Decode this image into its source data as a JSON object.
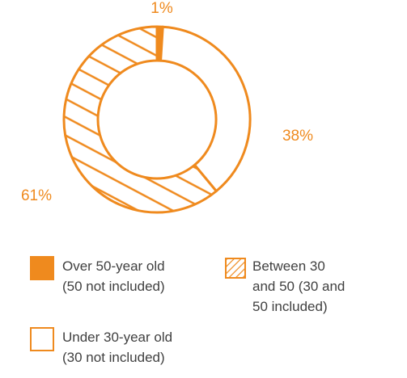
{
  "colors": {
    "accent": "#ef8a1e",
    "text": "#404040",
    "label": "#ef8a1e"
  },
  "chart_data": {
    "type": "pie",
    "style": "donut",
    "slices": [
      {
        "label": "Over 50-year old (50 not included)",
        "value": 1,
        "fill": "solid",
        "data_label": "1%"
      },
      {
        "label": "Under 30-year old (30 not included)",
        "value": 38,
        "fill": "outline",
        "data_label": "38%"
      },
      {
        "label": "Between 30 and 50 (30 and 50 included)",
        "value": 61,
        "fill": "hatch",
        "data_label": "61%"
      }
    ],
    "legend": {
      "placement": "bottom",
      "items": [
        {
          "lines": [
            "Over 50-year old",
            "(50 not included)"
          ],
          "fill": "solid"
        },
        {
          "lines": [
            "Between 30",
            "and 50 (30 and",
            "50 included)"
          ],
          "fill": "hatch"
        },
        {
          "lines": [
            "Under 30-year old",
            "(30 not included)"
          ],
          "fill": "outline"
        }
      ]
    }
  }
}
